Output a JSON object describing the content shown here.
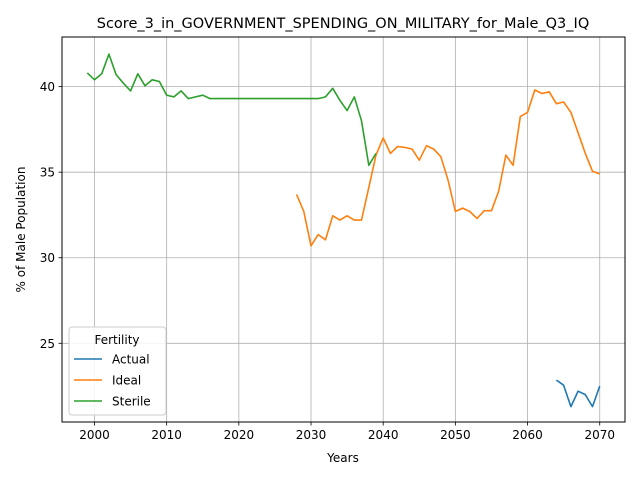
{
  "chart_data": {
    "type": "line",
    "title": "Score_3_in_GOVERNMENT_SPENDING_ON_MILITARY_for_Male_Q3_IQ",
    "xlabel": "Years",
    "ylabel": "% of Male Population",
    "xlim": [
      1995.5,
      2073.5
    ],
    "ylim": [
      20.4,
      42.9
    ],
    "xticks": [
      2000,
      2010,
      2020,
      2030,
      2040,
      2050,
      2060,
      2070
    ],
    "yticks": [
      25,
      30,
      35,
      40
    ],
    "grid": true,
    "legend": {
      "title": "Fertility",
      "placement": "lower-left"
    },
    "series": [
      {
        "name": "Actual",
        "color": "#1f77b4",
        "x": [
          2064,
          2065,
          2066,
          2067,
          2068,
          2069,
          2070
        ],
        "y": [
          22.85,
          22.55,
          21.3,
          22.2,
          22.0,
          21.3,
          22.5
        ]
      },
      {
        "name": "Ideal",
        "color": "#ff7f0e",
        "x": [
          2028,
          2029,
          2030,
          2031,
          2032,
          2033,
          2034,
          2035,
          2036,
          2037,
          2038,
          2039,
          2040,
          2041,
          2042,
          2043,
          2044,
          2045,
          2046,
          2047,
          2048,
          2049,
          2050,
          2051,
          2052,
          2053,
          2054,
          2055,
          2056,
          2057,
          2058,
          2059,
          2060,
          2061,
          2062,
          2063,
          2064,
          2065,
          2066,
          2067,
          2068,
          2069,
          2070
        ],
        "y": [
          33.7,
          32.7,
          30.7,
          31.35,
          31.05,
          32.45,
          32.2,
          32.45,
          32.2,
          32.2,
          34.1,
          36.0,
          37.0,
          36.1,
          36.5,
          36.45,
          36.35,
          35.7,
          36.55,
          36.35,
          35.9,
          34.5,
          32.7,
          32.9,
          32.7,
          32.3,
          32.75,
          32.75,
          33.9,
          36.0,
          35.4,
          38.25,
          38.5,
          39.8,
          39.6,
          39.7,
          39.0,
          39.1,
          38.5,
          37.3,
          36.1,
          35.05,
          34.9
        ]
      },
      {
        "name": "Sterile",
        "color": "#2ca02c",
        "x": [
          1999,
          2000,
          2001,
          2002,
          2003,
          2004,
          2005,
          2006,
          2007,
          2008,
          2009,
          2010,
          2011,
          2012,
          2013,
          2014,
          2015,
          2016,
          2017,
          2018,
          2019,
          2020,
          2021,
          2022,
          2023,
          2024,
          2025,
          2026,
          2027,
          2028,
          2029,
          2030,
          2031,
          2032,
          2033,
          2034,
          2035,
          2036,
          2037,
          2038,
          2039
        ],
        "y": [
          40.8,
          40.4,
          40.75,
          41.9,
          40.7,
          40.2,
          39.75,
          40.75,
          40.05,
          40.4,
          40.3,
          39.5,
          39.4,
          39.75,
          39.3,
          39.4,
          39.5,
          39.3,
          39.3,
          39.3,
          39.3,
          39.3,
          39.3,
          39.3,
          39.3,
          39.3,
          39.3,
          39.3,
          39.3,
          39.3,
          39.3,
          39.3,
          39.3,
          39.4,
          39.9,
          39.2,
          38.6,
          39.4,
          38.0,
          35.4,
          36.1
        ]
      }
    ]
  }
}
